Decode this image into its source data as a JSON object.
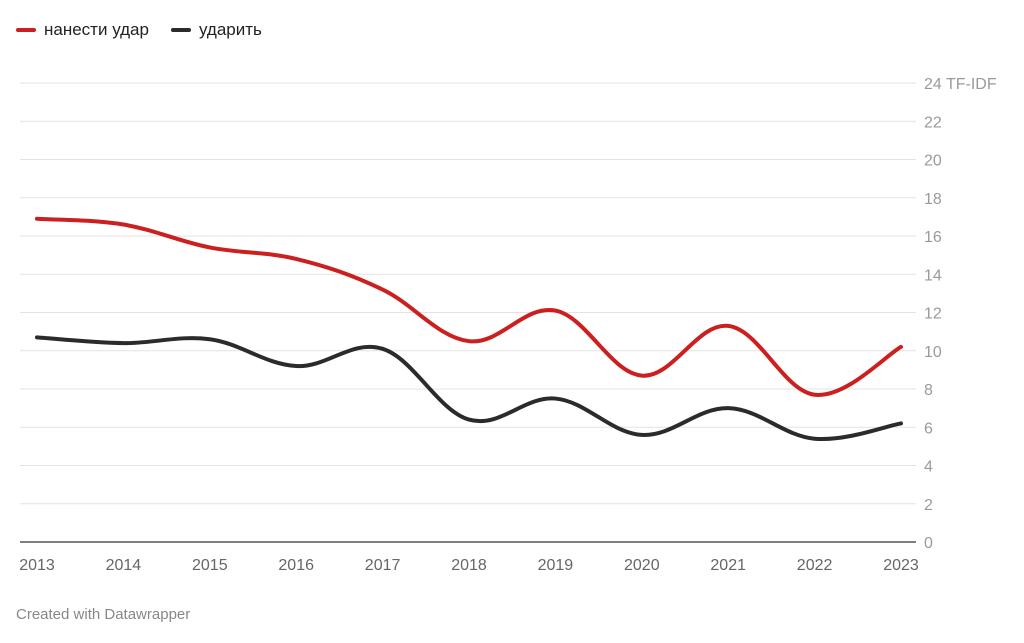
{
  "chart_data": {
    "type": "line",
    "title": "",
    "xlabel": "",
    "ylabel": "",
    "y_unit_label": "TF-IDF",
    "categories": [
      "2013",
      "2014",
      "2015",
      "2016",
      "2017",
      "2018",
      "2019",
      "2020",
      "2021",
      "2022",
      "2023"
    ],
    "series": [
      {
        "name": "нанести удар",
        "color": "#cc1f1f",
        "values": [
          16.9,
          16.6,
          15.4,
          14.8,
          13.2,
          10.5,
          12.1,
          8.7,
          11.3,
          7.7,
          10.2
        ]
      },
      {
        "name": "ударить",
        "color": "#2b2b2b",
        "values": [
          10.7,
          10.4,
          10.6,
          9.2,
          10.1,
          6.4,
          7.5,
          5.6,
          7.0,
          5.4,
          6.2
        ]
      }
    ],
    "ylim": [
      0,
      24
    ],
    "yticks": [
      0,
      2,
      4,
      6,
      8,
      10,
      12,
      14,
      16,
      18,
      20,
      22,
      24
    ],
    "grid": true,
    "legend_position": "top-left"
  },
  "legend": {
    "items": [
      {
        "label": "нанести удар",
        "color": "#cc1f1f"
      },
      {
        "label": "ударить",
        "color": "#2b2b2b"
      }
    ]
  },
  "footer": {
    "credit": "Created with Datawrapper"
  }
}
